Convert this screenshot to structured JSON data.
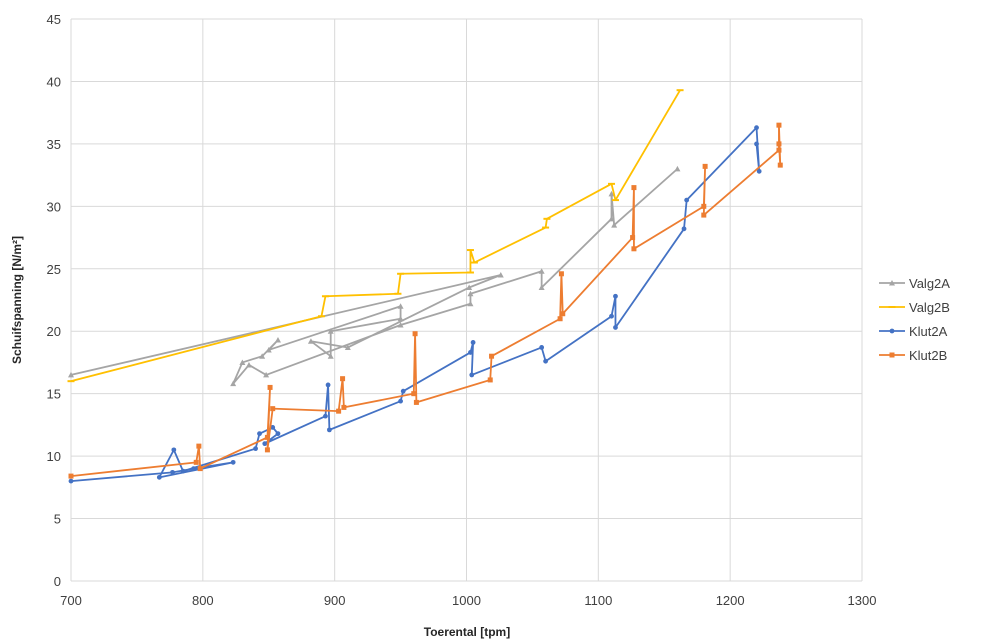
{
  "chart_data": {
    "type": "line",
    "title": "",
    "xlabel": "Toerental  [tpm]",
    "ylabel": "Schuifspanning [N/m²]",
    "xlim": [
      700,
      1300
    ],
    "ylim": [
      0,
      45
    ],
    "xticks": [
      "700",
      "800",
      "900",
      "1000",
      "1100",
      "1200",
      "1300"
    ],
    "yticks": [
      "0",
      "5",
      "10",
      "15",
      "20",
      "25",
      "30",
      "35",
      "40",
      "45"
    ],
    "grid": true,
    "legend_position": "right",
    "series": [
      {
        "name": "Valg2A",
        "color": "#a5a5a5",
        "marker": "triangle",
        "points": [
          [
            700,
            16.5
          ],
          [
            1026,
            24.5
          ],
          [
            1002,
            23.5
          ],
          [
            910,
            18.7
          ],
          [
            882,
            19.2
          ],
          [
            897,
            18.0
          ],
          [
            897,
            20.0
          ],
          [
            950,
            21.0
          ],
          [
            950,
            22.0
          ],
          [
            850,
            18.5
          ],
          [
            857,
            19.3
          ],
          [
            845,
            18.0
          ],
          [
            830,
            17.5
          ],
          [
            823,
            15.8
          ],
          [
            835,
            17.3
          ],
          [
            848,
            16.5
          ],
          [
            950,
            20.5
          ],
          [
            1003,
            22.2
          ],
          [
            1003,
            23.0
          ],
          [
            1057,
            24.8
          ],
          [
            1057,
            23.5
          ],
          [
            1110,
            29.0
          ],
          [
            1110,
            31.0
          ],
          [
            1112,
            28.5
          ],
          [
            1160,
            33.0
          ]
        ]
      },
      {
        "name": "Valg2B",
        "color": "#ffc000",
        "marker": "dash",
        "points": [
          [
            700,
            16.0
          ],
          [
            890,
            21.2
          ],
          [
            893,
            22.8
          ],
          [
            948,
            23.0
          ],
          [
            950,
            24.6
          ],
          [
            1003,
            24.7
          ],
          [
            1003,
            26.5
          ],
          [
            1006,
            25.5
          ],
          [
            1060,
            28.3
          ],
          [
            1061,
            29.0
          ],
          [
            1110,
            31.8
          ],
          [
            1113,
            30.5
          ],
          [
            1162,
            39.3
          ]
        ]
      },
      {
        "name": "Klut2A",
        "color": "#4472c4",
        "marker": "circle",
        "points": [
          [
            700,
            8.0
          ],
          [
            777,
            8.7
          ],
          [
            793,
            9.0
          ],
          [
            823,
            9.5
          ],
          [
            767,
            8.3
          ],
          [
            778,
            10.5
          ],
          [
            785,
            8.8
          ],
          [
            840,
            10.6
          ],
          [
            843,
            11.8
          ],
          [
            853,
            12.3
          ],
          [
            857,
            11.8
          ],
          [
            847,
            11.0
          ],
          [
            893,
            13.2
          ],
          [
            895,
            15.7
          ],
          [
            896,
            12.1
          ],
          [
            950,
            14.4
          ],
          [
            952,
            15.2
          ],
          [
            1003,
            18.3
          ],
          [
            1005,
            19.1
          ],
          [
            1004,
            16.5
          ],
          [
            1057,
            18.7
          ],
          [
            1060,
            17.6
          ],
          [
            1110,
            21.2
          ],
          [
            1113,
            22.8
          ],
          [
            1113,
            20.3
          ],
          [
            1165,
            28.2
          ],
          [
            1167,
            30.5
          ],
          [
            1220,
            36.3
          ],
          [
            1222,
            32.8
          ],
          [
            1220,
            35.0
          ]
        ]
      },
      {
        "name": "Klut2B",
        "color": "#ed7d31",
        "marker": "square",
        "points": [
          [
            700,
            8.4
          ],
          [
            795,
            9.5
          ],
          [
            797,
            10.8
          ],
          [
            798,
            9.0
          ],
          [
            849,
            11.5
          ],
          [
            851,
            15.5
          ],
          [
            849,
            10.5
          ],
          [
            853,
            13.8
          ],
          [
            903,
            13.6
          ],
          [
            906,
            16.2
          ],
          [
            907,
            13.9
          ],
          [
            960,
            15.0
          ],
          [
            961,
            19.8
          ],
          [
            962,
            14.3
          ],
          [
            1018,
            16.1
          ],
          [
            1019,
            18.0
          ],
          [
            1071,
            21.0
          ],
          [
            1072,
            24.6
          ],
          [
            1073,
            21.4
          ],
          [
            1126,
            27.5
          ],
          [
            1127,
            31.5
          ],
          [
            1127,
            26.6
          ],
          [
            1180,
            30.0
          ],
          [
            1181,
            33.2
          ],
          [
            1180,
            29.3
          ],
          [
            1237,
            34.5
          ],
          [
            1237,
            36.5
          ],
          [
            1238,
            33.3
          ],
          [
            1237,
            35.0
          ]
        ]
      }
    ]
  }
}
